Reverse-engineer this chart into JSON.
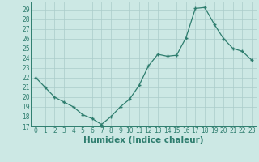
{
  "x": [
    0,
    1,
    2,
    3,
    4,
    5,
    6,
    7,
    8,
    9,
    10,
    11,
    12,
    13,
    14,
    15,
    16,
    17,
    18,
    19,
    20,
    21,
    22,
    23
  ],
  "y": [
    22,
    21,
    20,
    19.5,
    19,
    18.2,
    17.8,
    17.2,
    18,
    19,
    19.8,
    21.2,
    23.2,
    24.4,
    24.2,
    24.3,
    26.1,
    29.1,
    29.2,
    27.5,
    26,
    25,
    24.7,
    23.8
  ],
  "title": "",
  "xlabel": "Humidex (Indice chaleur)",
  "xlim": [
    -0.5,
    23.5
  ],
  "ylim": [
    17,
    29.8
  ],
  "yticks": [
    17,
    18,
    19,
    20,
    21,
    22,
    23,
    24,
    25,
    26,
    27,
    28,
    29
  ],
  "xticks": [
    0,
    1,
    2,
    3,
    4,
    5,
    6,
    7,
    8,
    9,
    10,
    11,
    12,
    13,
    14,
    15,
    16,
    17,
    18,
    19,
    20,
    21,
    22,
    23
  ],
  "line_color": "#2e7d6e",
  "marker_color": "#2e7d6e",
  "bg_color": "#cce8e4",
  "grid_color": "#aaccca",
  "axis_color": "#2e7d6e",
  "tick_fontsize": 5.5,
  "xlabel_fontsize": 7.5
}
